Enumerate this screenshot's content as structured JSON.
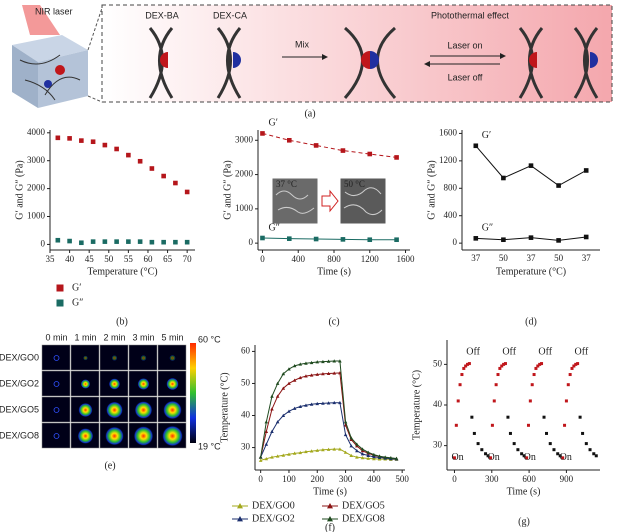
{
  "schematic": {
    "laser": "NIR laser",
    "components": [
      "DEX-BA",
      "DEX-CA"
    ],
    "mix": "Mix",
    "laser_on": "Laser on",
    "laser_off": "Laser off",
    "effect": "Photothermal effect",
    "caption": "(a)"
  },
  "thermal_images": {
    "columns": [
      "0 min",
      "1 min",
      "2 min",
      "3 min",
      "5 min"
    ],
    "rows": [
      "DEX/GO0",
      "DEX/GO2",
      "DEX/GO5",
      "DEX/GO8"
    ],
    "scale_max": "60 °C",
    "scale_min": "19 °C",
    "caption": "(e)"
  },
  "chart_data": [
    {
      "type": "scatter",
      "caption": "(b)",
      "x_label": "Temperature (°C)",
      "y_label": "G′ and G″ (Pa)",
      "xlim": [
        35,
        72
      ],
      "xticks": [
        35,
        40,
        45,
        50,
        55,
        60,
        65,
        70
      ],
      "ylim": [
        -200,
        4100
      ],
      "yticks": [
        0,
        1000,
        2000,
        3000,
        4000
      ],
      "legend": "below",
      "series": [
        {
          "name": "G′",
          "color": "#b5161b",
          "marker": "square",
          "line": "none",
          "x": [
            37,
            40,
            43,
            46,
            49,
            52,
            55,
            58,
            61,
            64,
            67,
            70
          ],
          "values": [
            3820,
            3800,
            3720,
            3680,
            3560,
            3420,
            3200,
            2980,
            2720,
            2450,
            2200,
            1880
          ]
        },
        {
          "name": "G″",
          "color": "#1a6b63",
          "marker": "square",
          "line": "none",
          "x": [
            37,
            40,
            43,
            46,
            49,
            52,
            55,
            58,
            61,
            64,
            67,
            70
          ],
          "values": [
            150,
            120,
            60,
            100,
            100,
            100,
            100,
            100,
            80,
            80,
            80,
            80
          ]
        }
      ]
    },
    {
      "type": "line",
      "caption": "(c)",
      "x_label": "Time (s)",
      "y_label": "G′ and G″ (Pa)",
      "xlim": [
        -50,
        1650
      ],
      "xticks": [
        0,
        400,
        800,
        1200,
        1600
      ],
      "ylim": [
        -200,
        3300
      ],
      "yticks": [
        0,
        1000,
        2000,
        3000
      ],
      "legend": "inline",
      "insets": [
        "37 °C",
        "50 °C"
      ],
      "series": [
        {
          "name": "G′",
          "color": "#b5161b",
          "marker": "square",
          "line": "dashed",
          "x": [
            0,
            300,
            600,
            900,
            1200,
            1500
          ],
          "values": [
            3200,
            3000,
            2850,
            2700,
            2600,
            2500
          ]
        },
        {
          "name": "G″",
          "color": "#1a6b63",
          "marker": "square",
          "line": "solid",
          "x": [
            0,
            300,
            600,
            900,
            1200,
            1500
          ],
          "values": [
            150,
            130,
            120,
            110,
            100,
            100
          ]
        }
      ]
    },
    {
      "type": "line",
      "caption": "(d)",
      "x_label": "Temperature (°C)",
      "y_label": "G′ and G″ (Pa)",
      "categories": [
        "37",
        "50",
        "37",
        "50",
        "37"
      ],
      "ylim": [
        -100,
        1650
      ],
      "yticks": [
        0,
        400,
        800,
        1200,
        1600
      ],
      "legend": "inline",
      "series": [
        {
          "name": "G′",
          "color": "#111111",
          "marker": "square",
          "line": "solid",
          "values": [
            1420,
            950,
            1130,
            840,
            1060
          ]
        },
        {
          "name": "G″",
          "color": "#111111",
          "marker": "square",
          "line": "solid",
          "values": [
            70,
            50,
            80,
            40,
            90
          ]
        }
      ]
    },
    {
      "type": "line",
      "caption": "(f)",
      "x_label": "Time (s)",
      "y_label": "Temperature (°C)",
      "xlim": [
        -20,
        510
      ],
      "xticks": [
        0,
        100,
        200,
        300,
        400,
        500
      ],
      "ylim": [
        23,
        62
      ],
      "yticks": [
        30,
        40,
        50,
        60
      ],
      "legend": "below",
      "series": [
        {
          "name": "DEX/GO0",
          "color": "#a3a81c",
          "marker": "triangle",
          "line": "solid",
          "x": [
            0,
            20,
            40,
            60,
            80,
            100,
            120,
            140,
            160,
            180,
            200,
            220,
            240,
            260,
            280,
            300,
            320,
            340,
            360,
            380,
            400,
            420,
            440,
            460,
            480
          ],
          "values": [
            26,
            26.5,
            27,
            27.3,
            27.6,
            27.9,
            28.2,
            28.4,
            28.7,
            28.9,
            29.1,
            29.3,
            29.4,
            29.5,
            29.5,
            28.5,
            27.5,
            27,
            26.8,
            26.6,
            26.5,
            26.4,
            26.4,
            26.3,
            26.3
          ]
        },
        {
          "name": "DEX/GO5",
          "color": "#8b1414",
          "marker": "triangle",
          "line": "solid",
          "x": [
            0,
            20,
            40,
            60,
            80,
            100,
            120,
            140,
            160,
            180,
            200,
            220,
            240,
            260,
            280,
            300,
            320,
            340,
            360,
            380,
            400,
            420,
            440,
            460,
            480
          ],
          "values": [
            27,
            35,
            42,
            46,
            48.5,
            50,
            51,
            51.8,
            52.3,
            52.6,
            52.8,
            53,
            53.1,
            53.2,
            53.3,
            37,
            32.5,
            30.5,
            29,
            28.2,
            27.6,
            27.2,
            26.9,
            26.7,
            26.5
          ]
        },
        {
          "name": "DEX/GO2",
          "color": "#1b2f6e",
          "marker": "triangle",
          "line": "solid",
          "x": [
            0,
            20,
            40,
            60,
            80,
            100,
            120,
            140,
            160,
            180,
            200,
            220,
            240,
            260,
            280,
            300,
            320,
            340,
            360,
            380,
            400,
            420,
            440,
            460,
            480
          ],
          "values": [
            27,
            31,
            35,
            38,
            40,
            41.3,
            42.2,
            42.8,
            43.2,
            43.5,
            43.7,
            43.8,
            43.9,
            44,
            44,
            34,
            30.5,
            29,
            28,
            27.5,
            27.1,
            26.9,
            26.7,
            26.5,
            26.4
          ]
        },
        {
          "name": "DEX/GO8",
          "color": "#1f4a1f",
          "marker": "triangle",
          "line": "solid",
          "x": [
            0,
            20,
            40,
            60,
            80,
            100,
            120,
            140,
            160,
            180,
            200,
            220,
            240,
            260,
            280,
            300,
            320,
            340,
            360,
            380,
            400,
            420,
            440,
            460,
            480
          ],
          "values": [
            27,
            38,
            46,
            50,
            53,
            54.5,
            55.5,
            56,
            56.3,
            56.5,
            56.7,
            56.8,
            56.9,
            57,
            57,
            38,
            33,
            31,
            29.5,
            28.5,
            27.8,
            27.3,
            27,
            26.8,
            26.6
          ]
        }
      ]
    },
    {
      "type": "scatter",
      "caption": "(g)",
      "x_label": "Time (s)",
      "y_label": "Temperature (°C)",
      "xlim": [
        -60,
        1170
      ],
      "xticks": [
        0,
        300,
        600,
        900
      ],
      "ylim": [
        24,
        56
      ],
      "yticks": [
        30,
        40,
        50
      ],
      "annotations": [
        "Off",
        "Off",
        "Off",
        "Off",
        "On",
        "On",
        "On",
        "On"
      ],
      "series": [
        {
          "color": "#c0161b",
          "marker": "square",
          "line": "none",
          "x": [
            0,
            15,
            30,
            45,
            60,
            75,
            90,
            105,
            120,
            290,
            305,
            320,
            335,
            350,
            365,
            380,
            395,
            410,
            580,
            595,
            610,
            625,
            640,
            655,
            670,
            685,
            700,
            870,
            885,
            900,
            915,
            930,
            945,
            960,
            975,
            990
          ],
          "values": [
            27,
            35,
            41,
            45,
            47.5,
            49,
            49.6,
            50,
            50.2,
            27,
            35,
            41,
            45,
            47.5,
            49,
            49.6,
            50,
            50.2,
            27,
            35,
            41,
            45,
            47.5,
            49,
            49.6,
            50,
            50.2,
            27,
            35,
            41,
            45,
            47.5,
            49,
            49.6,
            50,
            50.2
          ]
        },
        {
          "color": "#111111",
          "marker": "square",
          "line": "none",
          "x": [
            140,
            160,
            190,
            220,
            250,
            270,
            430,
            450,
            480,
            510,
            540,
            560,
            720,
            740,
            770,
            800,
            830,
            850,
            1010,
            1030,
            1060,
            1090,
            1120,
            1140
          ],
          "values": [
            37,
            33,
            30.5,
            29,
            28,
            27.5,
            37,
            33,
            30.5,
            29,
            28,
            27.5,
            37,
            33,
            30.5,
            29,
            28,
            27.5,
            37,
            33,
            30.5,
            29,
            28,
            27.5
          ]
        }
      ]
    }
  ]
}
